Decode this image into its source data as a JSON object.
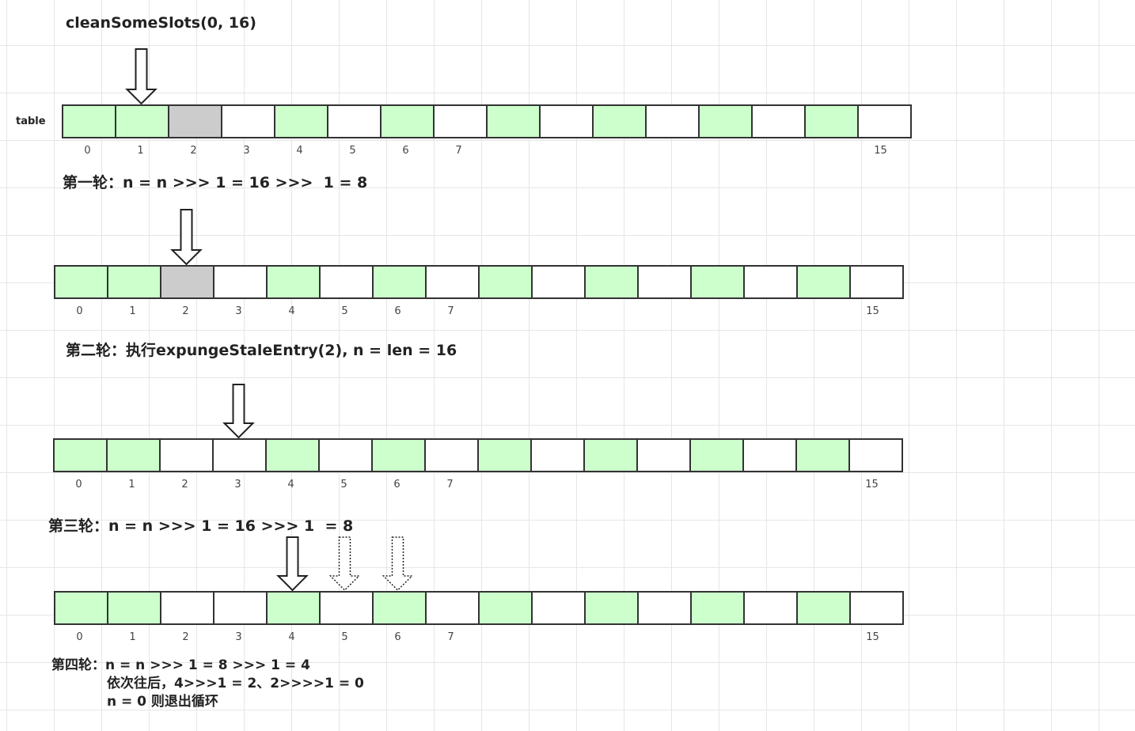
{
  "title": "cleanSomeSlots(0, 16)",
  "table_label": "table",
  "colors": {
    "occupied": "#ccffcc",
    "stale": "#cccccc",
    "empty": "#ffffff",
    "border": "#333333"
  },
  "index_labels": [
    "0",
    "1",
    "2",
    "3",
    "4",
    "5",
    "6",
    "7",
    "15"
  ],
  "rows": [
    {
      "cells": [
        "occupied",
        "occupied",
        "stale",
        "empty",
        "occupied",
        "empty",
        "occupied",
        "empty",
        "occupied",
        "empty",
        "occupied",
        "empty",
        "occupied",
        "empty",
        "occupied",
        "empty"
      ],
      "arrow_solid": 1,
      "arrows_dotted": []
    },
    {
      "cells": [
        "occupied",
        "occupied",
        "stale",
        "empty",
        "occupied",
        "empty",
        "occupied",
        "empty",
        "occupied",
        "empty",
        "occupied",
        "empty",
        "occupied",
        "empty",
        "occupied",
        "empty"
      ],
      "arrow_solid": 2,
      "arrows_dotted": []
    },
    {
      "cells": [
        "occupied",
        "occupied",
        "empty",
        "empty",
        "occupied",
        "empty",
        "occupied",
        "empty",
        "occupied",
        "empty",
        "occupied",
        "empty",
        "occupied",
        "empty",
        "occupied",
        "empty"
      ],
      "arrow_solid": 3,
      "arrows_dotted": []
    },
    {
      "cells": [
        "occupied",
        "occupied",
        "empty",
        "empty",
        "occupied",
        "empty",
        "occupied",
        "empty",
        "occupied",
        "empty",
        "occupied",
        "empty",
        "occupied",
        "empty",
        "occupied",
        "empty"
      ],
      "arrow_solid": 4,
      "arrows_dotted": [
        5,
        6
      ]
    }
  ],
  "captions": {
    "round1": "第一轮：n = n >>> 1 = 16 >>>  1 = 8",
    "round2": "第二轮：执行expungeStaleEntry(2), n = len = 16",
    "round3": "第三轮：n = n >>> 1 = 16 >>> 1  = 8",
    "round4_line1": "第四轮：n = n >>> 1 = 8 >>> 1 = 4",
    "round4_line2": "依次往后，4>>>1 = 2、2>>>>1 = 0",
    "round4_line3": "n = 0 则退出循环"
  }
}
